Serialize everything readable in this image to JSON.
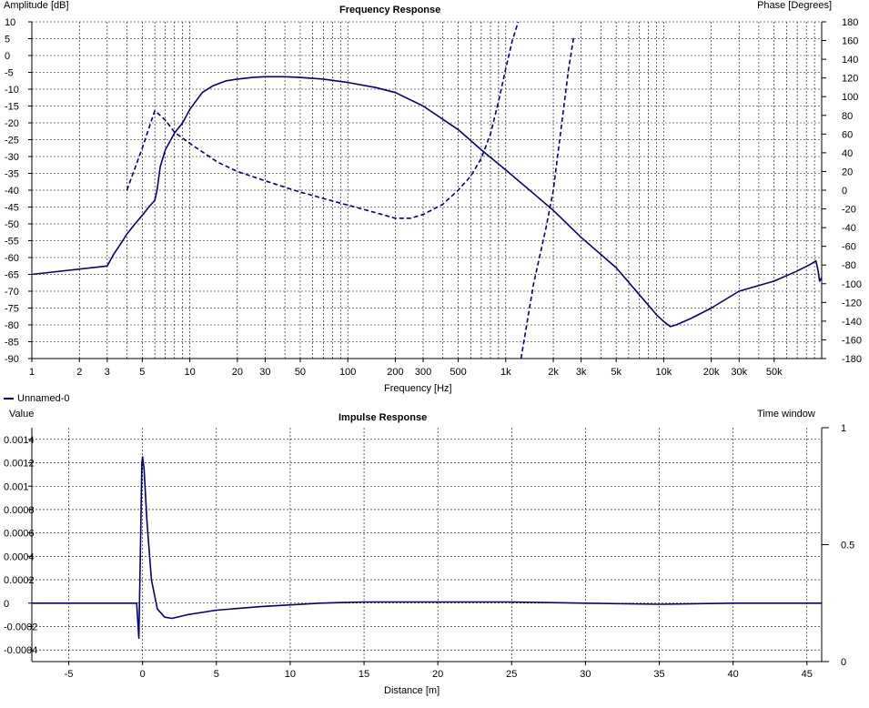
{
  "top_chart": {
    "title": "Frequency Response",
    "left_axis_label": "Amplitude [dB]",
    "right_axis_label": "Phase [Degrees]",
    "x_axis_label": "Frequency [Hz]"
  },
  "bottom_chart": {
    "title": "Impulse Response",
    "left_axis_label": "Value",
    "right_axis_label": "Time window",
    "x_axis_label": "Distance [m]"
  },
  "legend": {
    "label": "Unnamed-0",
    "color": "#000080"
  },
  "chart_data": [
    {
      "type": "line",
      "title": "Frequency Response",
      "xlabel": "Frequency [Hz]",
      "ylabel": "Amplitude [dB]",
      "y2label": "Phase [Degrees]",
      "xscale": "log",
      "xlim": [
        1,
        100000
      ],
      "ylim": [
        -90,
        10
      ],
      "y2lim": [
        -180,
        180
      ],
      "x_ticks": [
        1,
        2,
        3,
        5,
        10,
        20,
        30,
        50,
        100,
        200,
        300,
        500,
        1000,
        2000,
        3000,
        5000,
        10000,
        20000,
        30000,
        50000
      ],
      "x_tick_labels": [
        "1",
        "2",
        "3",
        "5",
        "10",
        "20",
        "30",
        "50",
        "100",
        "200",
        "300",
        "500",
        "1k",
        "2k",
        "3k",
        "5k",
        "10k",
        "20k",
        "30k",
        "50k"
      ],
      "y_ticks": [
        10,
        5,
        0,
        -5,
        -10,
        -15,
        -20,
        -25,
        -30,
        -35,
        -40,
        -45,
        -50,
        -55,
        -60,
        -65,
        -70,
        -75,
        -80,
        -85,
        -90
      ],
      "y2_ticks": [
        180,
        160,
        140,
        120,
        100,
        80,
        60,
        40,
        20,
        0,
        -20,
        -40,
        -60,
        -80,
        -100,
        -120,
        -140,
        -160,
        -180
      ],
      "grid": true,
      "line_color": "#000080",
      "series": [
        {
          "axis": "left",
          "style": "solid",
          "x": [
            1,
            3,
            3.3,
            3.7,
            4,
            4.5,
            5,
            5.5,
            6,
            6.2,
            6.5,
            7,
            8,
            9,
            10,
            12,
            14,
            17,
            20,
            25,
            30,
            40,
            50,
            70,
            100,
            150,
            200,
            300,
            500,
            700,
            1000,
            1500,
            2000,
            3000,
            5000,
            7000,
            9000,
            10000,
            11000,
            12000,
            15000,
            20000,
            30000,
            50000,
            70000,
            85000,
            92000,
            95000,
            97000,
            100000
          ],
          "y": [
            -65,
            -62.5,
            -59,
            -55.5,
            -53,
            -50,
            -47.5,
            -45,
            -43,
            -40,
            -33,
            -28,
            -23,
            -20,
            -16,
            -11,
            -9,
            -7.5,
            -7,
            -6.5,
            -6.3,
            -6.3,
            -6.5,
            -7,
            -8,
            -9.5,
            -11,
            -15,
            -22,
            -28,
            -34,
            -41,
            -46,
            -54,
            -63,
            -71,
            -77,
            -79,
            -80.5,
            -80,
            -78,
            -75,
            -70,
            -67,
            -64,
            -62,
            -61,
            -64,
            -67,
            -66
          ]
        },
        {
          "axis": "right",
          "style": "dashed",
          "x": [
            4,
            5,
            6,
            7,
            8,
            10,
            15,
            20,
            30,
            50,
            100,
            150,
            200,
            250,
            300,
            400,
            500,
            600,
            700,
            800,
            900,
            1000,
            1100,
            1200
          ],
          "y": [
            0,
            45,
            85,
            75,
            62,
            50,
            30,
            20,
            10,
            -2,
            -16,
            -24,
            -30,
            -30,
            -26,
            -15,
            0,
            15,
            34,
            60,
            95,
            130,
            160,
            180
          ]
        },
        {
          "axis": "right",
          "style": "dashed",
          "x": [
            1250,
            1500,
            1800,
            2000,
            2200,
            2500,
            2700
          ],
          "y": [
            -180,
            -100,
            -40,
            0,
            55,
            130,
            165
          ]
        }
      ]
    },
    {
      "type": "line",
      "title": "Impulse Response",
      "xlabel": "Distance [m]",
      "ylabel": "Value",
      "y2label": "Time window",
      "xlim": [
        -7.5,
        46
      ],
      "ylim": [
        -0.0005,
        0.0015
      ],
      "y2lim": [
        0,
        1
      ],
      "x_ticks": [
        -5,
        0,
        5,
        10,
        15,
        20,
        25,
        30,
        35,
        40,
        45
      ],
      "y_ticks": [
        0.0014,
        0.0012,
        0.001,
        0.0008,
        0.0006,
        0.0004,
        0.0002,
        0,
        -0.0002,
        -0.0004
      ],
      "y_tick_labels": [
        "0.0014",
        "0.0012",
        "0.001",
        "0.0008",
        "0.0006",
        "0.0004",
        "0.0002",
        "0",
        "-0.0002",
        "-0.0004"
      ],
      "y2_ticks": [
        1,
        0.5,
        0
      ],
      "y2_tick_labels": [
        "1",
        "0.5",
        "0"
      ],
      "grid": true,
      "line_color": "#000080",
      "series": [
        {
          "axis": "left",
          "style": "solid",
          "x": [
            -7.5,
            -1,
            -0.4,
            -0.25,
            -0.15,
            -0.05,
            0,
            0.1,
            0.3,
            0.6,
            1,
            1.5,
            2,
            3,
            5,
            8,
            12,
            15,
            20,
            25,
            30,
            35,
            40,
            46
          ],
          "y": [
            0,
            0,
            0,
            -0.0003,
            0.0004,
            0.0012,
            0.00125,
            0.00115,
            0.0007,
            0.0002,
            -5e-05,
            -0.00012,
            -0.00013,
            -0.0001,
            -6e-05,
            -3e-05,
            0,
            1e-05,
            1e-05,
            1e-05,
            0,
            -1e-05,
            0,
            0
          ]
        }
      ]
    }
  ]
}
